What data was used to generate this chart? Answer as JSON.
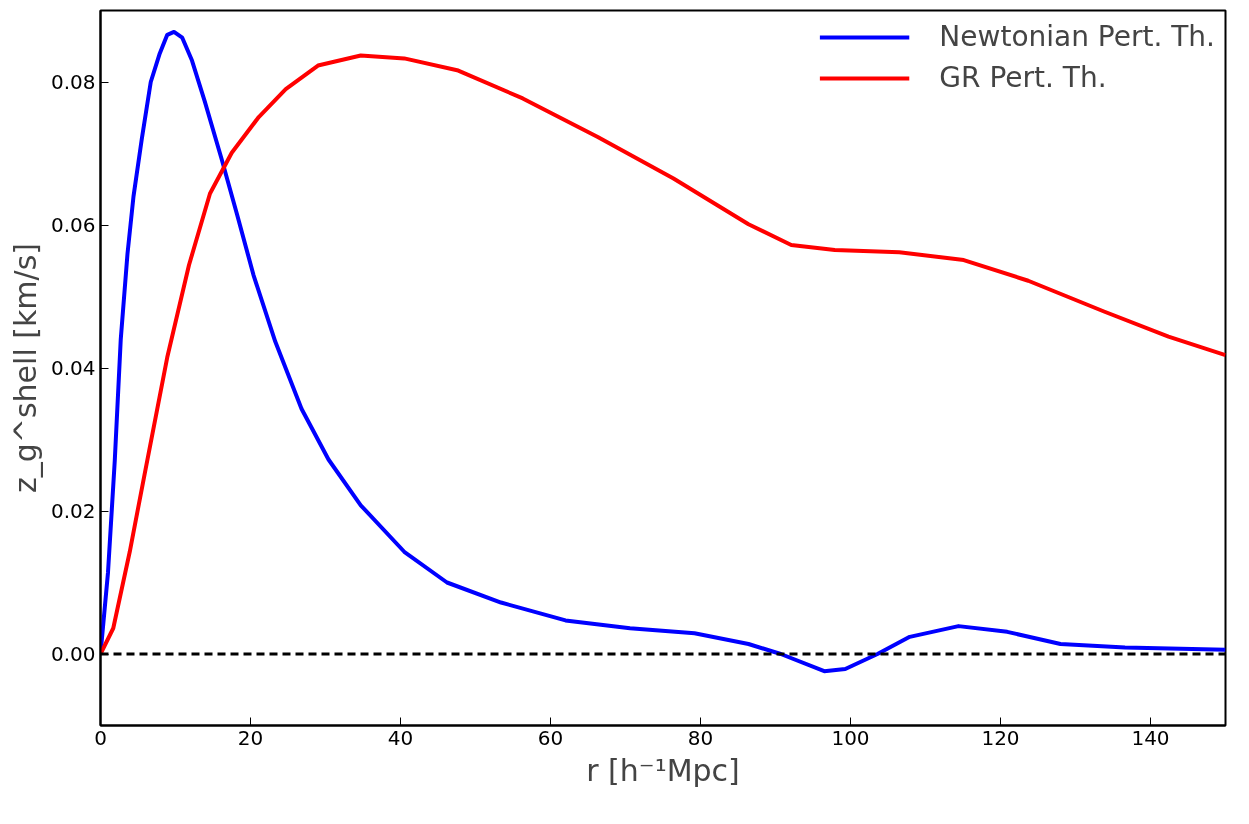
{
  "chart_data": {
    "type": "line",
    "xlabel": "r [h⁻¹Mpc]",
    "ylabel": "z_g^shell [km/s]",
    "xlim": [
      0,
      150
    ],
    "ylim": [
      -0.01,
      0.09
    ],
    "xticks": [
      0,
      20,
      40,
      60,
      80,
      100,
      120,
      140
    ],
    "yticks": [
      {
        "value": 0,
        "label": "0.00"
      },
      {
        "value": 0.02,
        "label": "0.02"
      },
      {
        "value": 0.04,
        "label": "0.04"
      },
      {
        "value": 0.06,
        "label": "0.06"
      },
      {
        "value": 0.08,
        "label": "0.08"
      }
    ],
    "grid": false,
    "legend": "top right",
    "line_style": "solid",
    "marker": "none",
    "ref_lines": [
      {
        "axis": "y",
        "value": 0,
        "color": "#000000",
        "line_style": "dashed"
      }
    ],
    "series": [
      {
        "name": "Newtonian Pert. Th.",
        "color": "#0000ff",
        "x": [
          0,
          1,
          1.9,
          2.7,
          3.6,
          4.4,
          5.5,
          6.7,
          7.9,
          8.9,
          9.8,
          10.9,
          12.2,
          13.9,
          16.1,
          18.2,
          20.4,
          23.3,
          26.8,
          30.4,
          34.7,
          40.5,
          46.2,
          53.4,
          62,
          70.6,
          79.2,
          86.4,
          90.7,
          96.5,
          99.3,
          103.6,
          107.9,
          114.4,
          120.9,
          128,
          136.6,
          150
        ],
        "values": [
          0,
          0.0114,
          0.027,
          0.044,
          0.056,
          0.064,
          0.072,
          0.08,
          0.084,
          0.0866,
          0.087,
          0.0862,
          0.083,
          0.0773,
          0.0694,
          0.0615,
          0.053,
          0.0437,
          0.0343,
          0.0272,
          0.0208,
          0.0143,
          0.01,
          0.0072,
          0.0047,
          0.0036,
          0.0029,
          0.0014,
          0,
          -0.0024,
          -0.0021,
          0,
          0.0024,
          0.0039,
          0.0031,
          0.0014,
          0.0009,
          0.0006
        ]
      },
      {
        "name": "GR Pert. Th.",
        "color": "#ff0000",
        "x": [
          0,
          1.7,
          3.9,
          6,
          8.9,
          11.8,
          14.6,
          17.5,
          21.1,
          24.7,
          29,
          34.7,
          40.5,
          47.7,
          56.3,
          66.3,
          76.4,
          86.4,
          92.1,
          97.9,
          106.5,
          115.1,
          123.7,
          133.8,
          142.4,
          150
        ],
        "values": [
          0,
          0.0036,
          0.0143,
          0.0258,
          0.0415,
          0.0544,
          0.0644,
          0.0701,
          0.0751,
          0.079,
          0.0823,
          0.0837,
          0.0833,
          0.0816,
          0.0777,
          0.0723,
          0.0665,
          0.0601,
          0.0572,
          0.0565,
          0.0562,
          0.0551,
          0.0522,
          0.0479,
          0.0444,
          0.0418
        ]
      }
    ]
  }
}
